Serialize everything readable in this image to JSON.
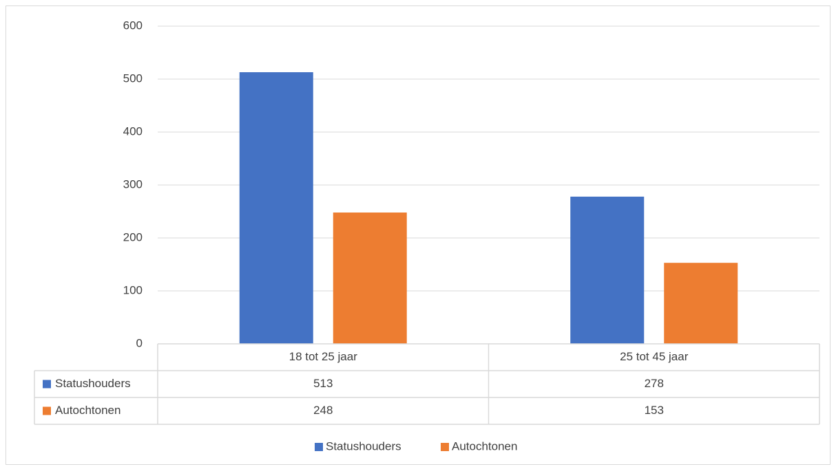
{
  "chart_data": {
    "type": "bar",
    "categories": [
      "18 tot 25 jaar",
      "25 tot 45 jaar"
    ],
    "series": [
      {
        "name": "Statushouders",
        "color": "#4472c4",
        "values": [
          513,
          278
        ]
      },
      {
        "name": "Autochtonen",
        "color": "#ed7d31",
        "values": [
          248,
          153
        ]
      }
    ],
    "ylim": [
      0,
      600
    ],
    "yticks": [
      0,
      100,
      200,
      300,
      400,
      500,
      600
    ],
    "grid": true,
    "data_table": true,
    "legend": "bottom"
  }
}
